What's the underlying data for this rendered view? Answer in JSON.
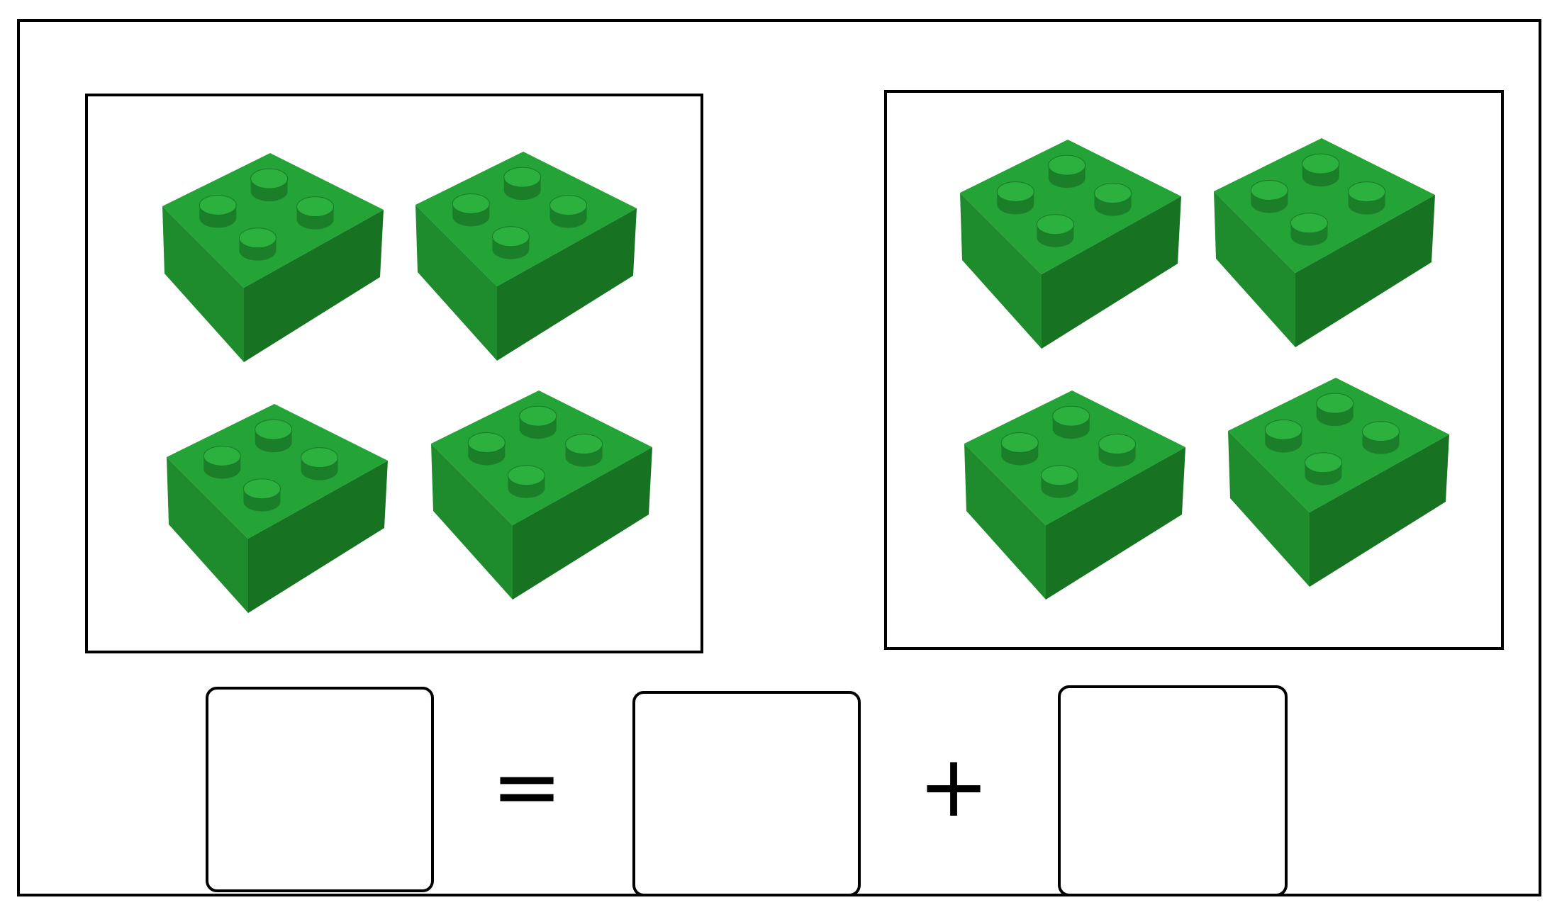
{
  "worksheet": {
    "groups": [
      {
        "name": "left-group",
        "brick_count": 4,
        "brick_color": "#1f8f2e"
      },
      {
        "name": "right-group",
        "brick_count": 4,
        "brick_color": "#1f8f2e"
      }
    ],
    "equation": {
      "equals_symbol": "=",
      "plus_symbol": "+",
      "boxes": [
        "",
        "",
        ""
      ]
    }
  },
  "colors": {
    "brick_top": "#24a336",
    "brick_left": "#1e8c2c",
    "brick_right": "#177322",
    "stud_top": "#2cb03e",
    "stud_side": "#1b7f29",
    "border": "#000000"
  },
  "icons": {
    "brick": "lego-2x2-brick-icon"
  }
}
